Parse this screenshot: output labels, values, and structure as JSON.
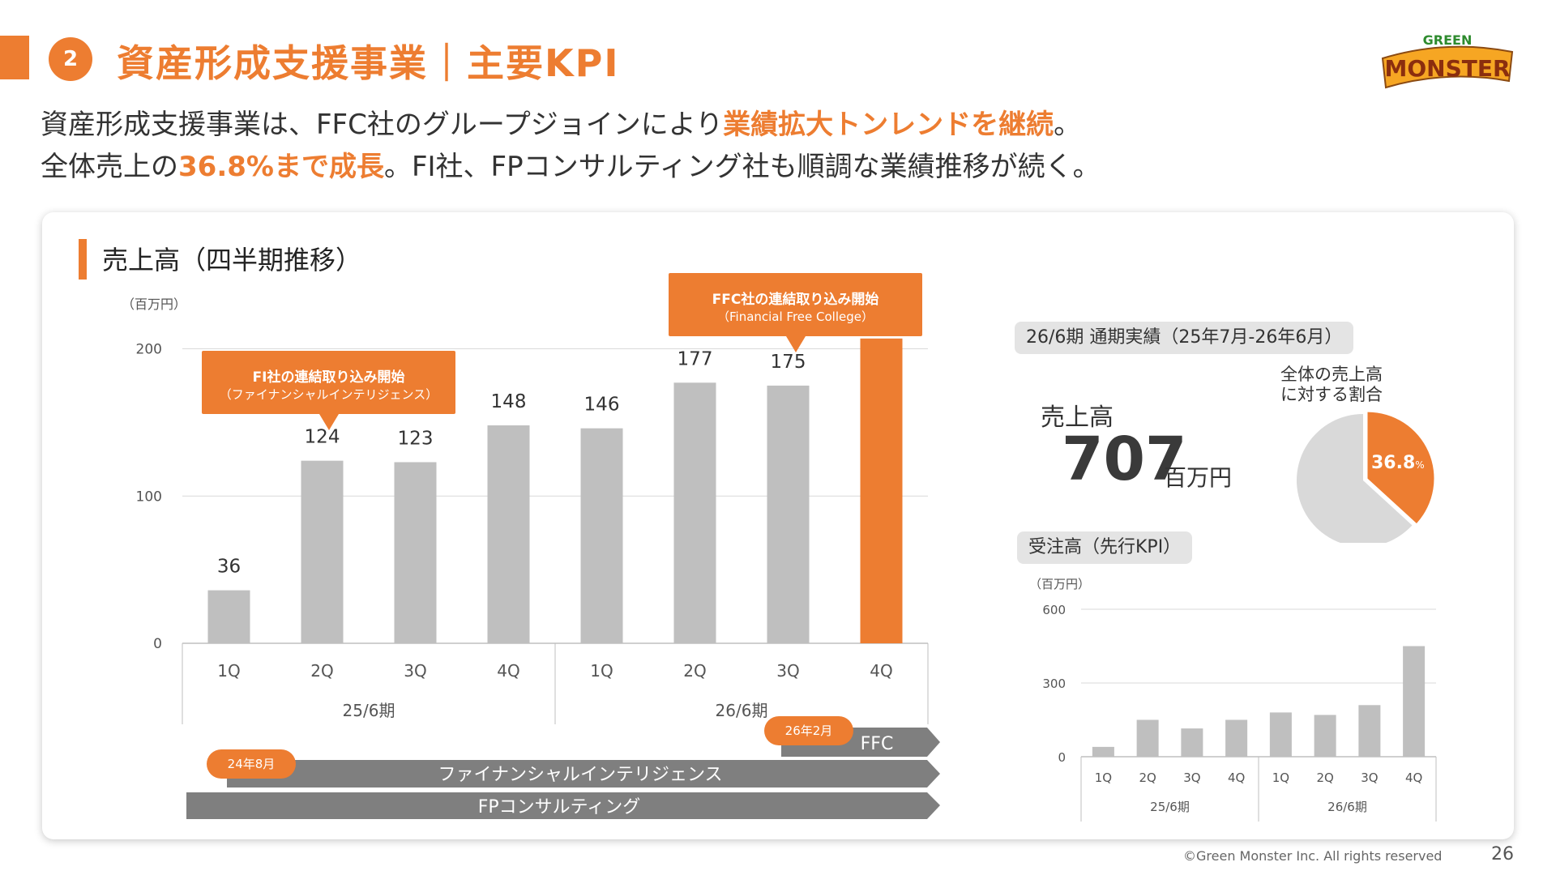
{
  "header": {
    "number": "2",
    "title": "資産形成支援事業｜主要KPI",
    "logo_top": "GREEN",
    "logo_main": "MONSTER"
  },
  "lead": {
    "line1_a": "資産形成支援事業は、FFC社のグループジョインにより",
    "line1_hl": "業績拡大トンレンドを継続",
    "line1_b": "。",
    "line2_a": "全体売上の",
    "line2_hl": "36.8%まで成長",
    "line2_b": "。FI社、FPコンサルティング社も順調な業績推移が続く。"
  },
  "section_title": "売上高（四半期推移）",
  "colors": {
    "accent": "#ED7D31",
    "bar_gray": "#BFBFBF",
    "arrow_gray": "#7F7F7F"
  },
  "chart_data": [
    {
      "type": "bar",
      "title": "売上高（四半期推移）",
      "unit": "（百万円）",
      "categories": [
        "1Q",
        "2Q",
        "3Q",
        "4Q",
        "1Q",
        "2Q",
        "3Q",
        "4Q"
      ],
      "groups": [
        {
          "label": "25/6期",
          "categories": [
            "1Q",
            "2Q",
            "3Q",
            "4Q"
          ]
        },
        {
          "label": "26/6期",
          "categories": [
            "1Q",
            "2Q",
            "3Q",
            "4Q"
          ]
        }
      ],
      "values": [
        36,
        124,
        123,
        148,
        146,
        177,
        175,
        207
      ],
      "highlight_index": 7,
      "yticks": [
        0,
        100,
        200
      ],
      "ylim": [
        0,
        230
      ],
      "grid": true
    },
    {
      "type": "bar",
      "title": "受注高（先行KPI）",
      "unit": "（百万円）",
      "categories": [
        "1Q",
        "2Q",
        "3Q",
        "4Q",
        "1Q",
        "2Q",
        "3Q",
        "4Q"
      ],
      "groups": [
        {
          "label": "25/6期",
          "categories": [
            "1Q",
            "2Q",
            "3Q",
            "4Q"
          ]
        },
        {
          "label": "26/6期",
          "categories": [
            "1Q",
            "2Q",
            "3Q",
            "4Q"
          ]
        }
      ],
      "values": [
        40,
        150,
        115,
        150,
        180,
        170,
        210,
        450
      ],
      "yticks": [
        0,
        300,
        600
      ],
      "ylim": [
        0,
        600
      ],
      "grid": true
    },
    {
      "type": "pie",
      "title": "全体の売上高に対する割合",
      "values": [
        36.8,
        63.2
      ],
      "labels": [
        "36.8",
        "%"
      ],
      "colors": [
        "#ED7D31",
        "#D9D9D9"
      ]
    }
  ],
  "callouts": {
    "fi": {
      "line1": "FI社の連結取り込み開始",
      "line2": "（ファイナンシャルインテリジェンス）"
    },
    "ffc": {
      "line1": "FFC社の連結取り込み開始",
      "line2": "（Financial Free College）"
    }
  },
  "timeline": {
    "ffc": {
      "badge": "26年2月",
      "label": "FFC"
    },
    "fi": {
      "badge": "24年8月",
      "label": "ファイナンシャルインテリジェンス"
    },
    "fp": {
      "label": "FPコンサルティング"
    }
  },
  "summary": {
    "period_pill": "26/6期 通期実績（25年7月-26年6月）",
    "sales_label": "売上高",
    "sales_value": "707",
    "sales_unit": "百万円",
    "share_label_1": "全体の売上高",
    "share_label_2": "に対する割合",
    "order_pill": "受注高（先行KPI）"
  },
  "footer": {
    "copyright": "©Green Monster Inc. All rights reserved",
    "page": "26"
  }
}
